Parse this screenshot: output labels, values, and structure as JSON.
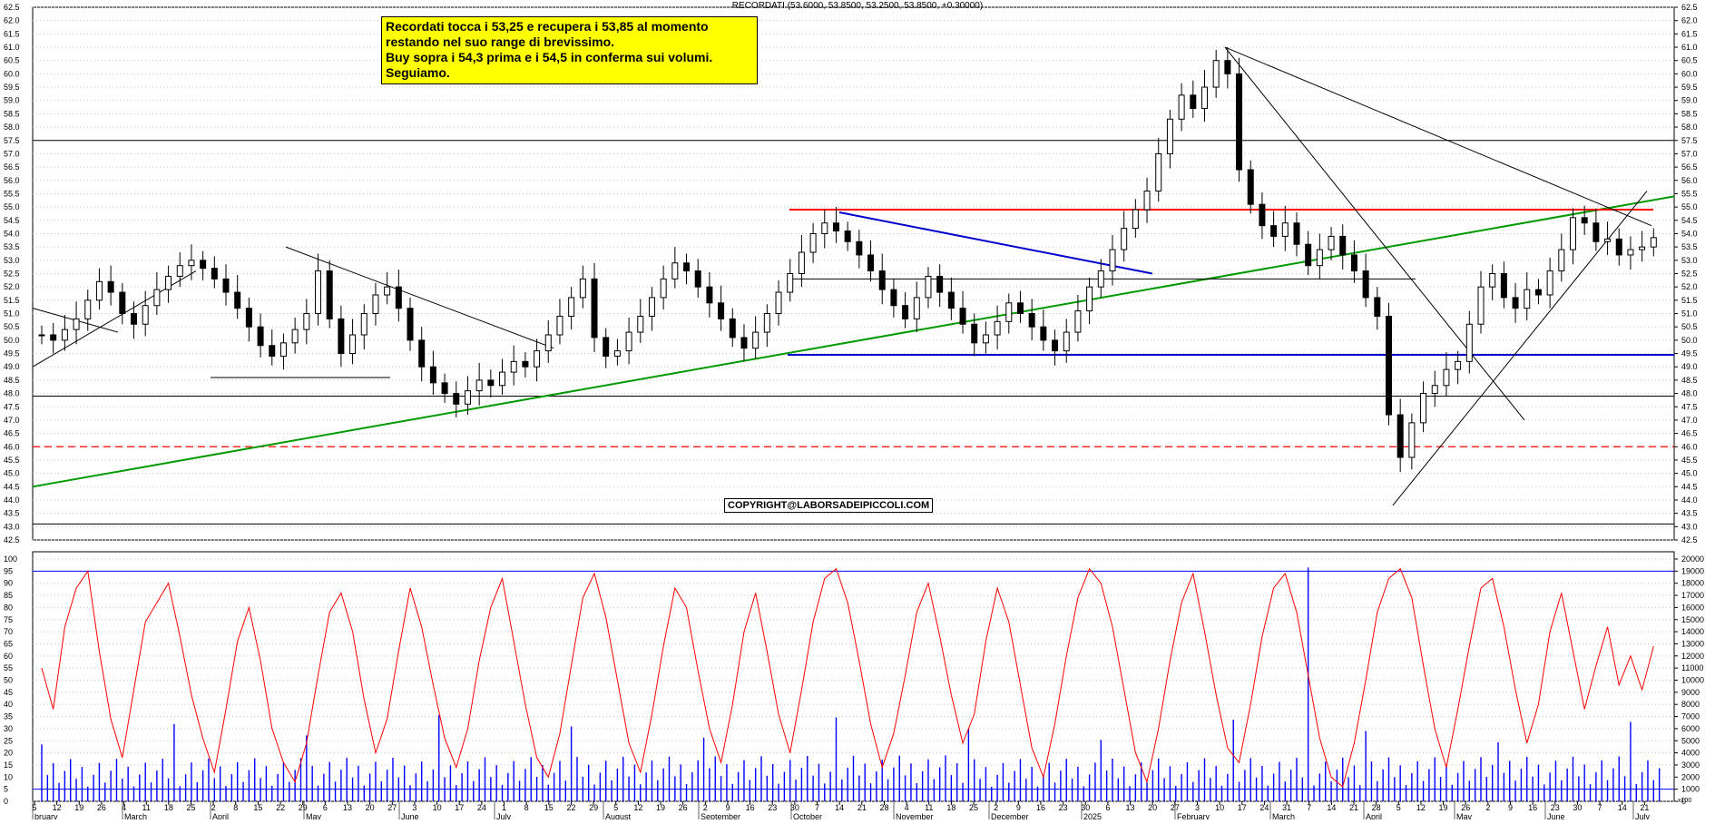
{
  "title": "RECORDATI (53.6000, 53.8500, 53.2500, 53.8500, +0.30000)",
  "annotation": {
    "lines": [
      "Recordati tocca i 53,25 e recupera i 53,85 al momento",
      "restando nel suo range di brevissimo.",
      "Buy sopra i 54,3 prima e i 54,5 in conferma sui volumi.",
      "Seguiamo."
    ],
    "background": "#ffff00"
  },
  "copyright": "COPYRIGHT@LABORSADEIPICCOLI.COM",
  "colors": {
    "up_candle": "#000000",
    "resistance": "#ff0000",
    "support": "#0000cc",
    "uptrend": "#009900",
    "oscillator": "#ff0000",
    "volume": "#0000ff",
    "grid": "#c0c0c0"
  },
  "chart_data": [
    {
      "type": "candlestick",
      "series_name": "RECORDATI",
      "ylim": [
        42.5,
        62.5
      ],
      "y_ticks": [
        "62.5",
        "62.0",
        "61.5",
        "61.0",
        "60.5",
        "60.0",
        "59.5",
        "59.0",
        "58.5",
        "58.0",
        "57.5",
        "57.0",
        "56.5",
        "56.0",
        "55.5",
        "55.0",
        "54.5",
        "54.0",
        "53.5",
        "53.0",
        "52.5",
        "52.0",
        "51.5",
        "51.0",
        "50.5",
        "50.0",
        "49.5",
        "49.0",
        "48.5",
        "48.0",
        "47.5",
        "47.0",
        "46.5",
        "46.0",
        "45.5",
        "45.0",
        "44.5",
        "44.0",
        "43.5",
        "43.0",
        "42.5"
      ],
      "last_bar": {
        "open": 53.6,
        "high": 53.85,
        "low": 53.25,
        "close": 53.85,
        "change": 0.3
      },
      "closes": [
        50.2,
        50.0,
        50.4,
        50.8,
        51.5,
        52.2,
        51.8,
        51.0,
        50.6,
        51.3,
        51.9,
        52.4,
        52.8,
        53.0,
        52.7,
        52.3,
        51.8,
        51.2,
        50.5,
        49.8,
        49.4,
        49.9,
        50.4,
        51.0,
        52.6,
        50.8,
        49.5,
        50.2,
        51.0,
        51.7,
        52.0,
        51.2,
        50.0,
        49.0,
        48.4,
        48.0,
        47.6,
        48.1,
        48.5,
        48.3,
        48.8,
        49.2,
        49.0,
        49.6,
        50.2,
        50.9,
        51.6,
        52.3,
        50.1,
        49.4,
        49.6,
        50.3,
        50.9,
        51.6,
        52.3,
        52.9,
        52.6,
        52.0,
        51.4,
        50.8,
        50.1,
        49.7,
        50.3,
        51.0,
        51.8,
        52.5,
        53.3,
        54.0,
        54.4,
        54.1,
        53.7,
        53.2,
        52.6,
        51.9,
        51.3,
        50.8,
        51.6,
        52.4,
        51.8,
        51.2,
        50.6,
        49.9,
        50.2,
        50.7,
        51.4,
        51.0,
        50.5,
        50.0,
        49.6,
        50.3,
        51.1,
        52.0,
        52.6,
        53.4,
        54.2,
        54.9,
        55.6,
        57.0,
        58.3,
        59.2,
        58.7,
        59.5,
        60.5,
        60.0,
        56.4,
        55.1,
        54.3,
        53.9,
        54.4,
        53.6,
        52.8,
        53.4,
        53.9,
        53.2,
        52.6,
        51.6,
        50.9,
        47.2,
        45.6,
        46.9,
        48.0,
        48.3,
        48.9,
        49.2,
        50.6,
        52.0,
        52.5,
        51.6,
        51.2,
        51.9,
        51.7,
        52.6,
        53.4,
        54.6,
        54.4,
        53.7,
        53.8,
        53.2,
        53.4,
        53.5,
        53.85
      ],
      "axis_end_labels": [
        "62.0",
        "42.5"
      ]
    },
    {
      "type": "line",
      "series_name": "oscillator",
      "ylim": [
        0,
        100
      ],
      "y_ticks": [
        "100",
        "95",
        "90",
        "85",
        "80",
        "75",
        "70",
        "65",
        "60",
        "55",
        "50",
        "45",
        "40",
        "35",
        "30",
        "25",
        "20",
        "15",
        "10",
        "5",
        "0"
      ],
      "reference_lines": [
        95,
        5
      ],
      "values": [
        55,
        38,
        72,
        88,
        95,
        62,
        34,
        18,
        46,
        74,
        82,
        90,
        68,
        44,
        26,
        12,
        38,
        66,
        80,
        58,
        30,
        16,
        8,
        24,
        52,
        78,
        86,
        70,
        42,
        20,
        34,
        62,
        88,
        72,
        48,
        26,
        14,
        30,
        58,
        80,
        92,
        66,
        40,
        18,
        10,
        28,
        56,
        84,
        94,
        76,
        50,
        24,
        12,
        36,
        64,
        88,
        80,
        54,
        30,
        16,
        40,
        70,
        86,
        62,
        36,
        20,
        46,
        74,
        92,
        96,
        82,
        58,
        32,
        14,
        28,
        52,
        78,
        90,
        68,
        44,
        24,
        36,
        66,
        88,
        74,
        48,
        22,
        10,
        32,
        60,
        84,
        96,
        90,
        72,
        46,
        20,
        8,
        30,
        58,
        82,
        94,
        70,
        44,
        22,
        16,
        40,
        68,
        88,
        94,
        78,
        52,
        26,
        10,
        6,
        24,
        50,
        78,
        92,
        96,
        84,
        56,
        30,
        14,
        38,
        64,
        88,
        92,
        72,
        46,
        24,
        40,
        70,
        86,
        62,
        38,
        56,
        72,
        48,
        60,
        46,
        64
      ],
      "volume_ylim": [
        0,
        20000
      ],
      "volume_ticks": [
        "20000",
        "19000",
        "18000",
        "17000",
        "16000",
        "15000",
        "14000",
        "13000",
        "12000",
        "11000",
        "10000",
        "9000",
        "8000",
        "7000",
        "6000",
        "5000",
        "4000",
        "3000",
        "2000",
        "1000",
        "0"
      ],
      "volume_unit": "x100"
    }
  ],
  "x_axis": {
    "day_labels": [
      "5",
      "12",
      "19",
      "26",
      "4",
      "11",
      "18",
      "25",
      "2",
      "8",
      "15",
      "22",
      "29",
      "6",
      "13",
      "20",
      "27",
      "3",
      "10",
      "17",
      "24",
      "1",
      "8",
      "15",
      "22",
      "29",
      "5",
      "12",
      "19",
      "26",
      "2",
      "9",
      "16",
      "23",
      "30",
      "7",
      "14",
      "21",
      "28",
      "4",
      "11",
      "18",
      "25",
      "2",
      "9",
      "16",
      "23",
      "30",
      "6",
      "13",
      "20",
      "27",
      "3",
      "10",
      "17",
      "24",
      "31",
      "7",
      "14",
      "21",
      "28",
      "5",
      "12",
      "19",
      "26",
      "2",
      "9",
      "16",
      "23",
      "30",
      "7",
      "14",
      "21"
    ],
    "month_labels": [
      "bruary",
      "March",
      "April",
      "May",
      "June",
      "July",
      "August",
      "September",
      "October",
      "November",
      "December",
      "2025",
      "February",
      "March",
      "April",
      "May",
      "June",
      "July"
    ]
  }
}
